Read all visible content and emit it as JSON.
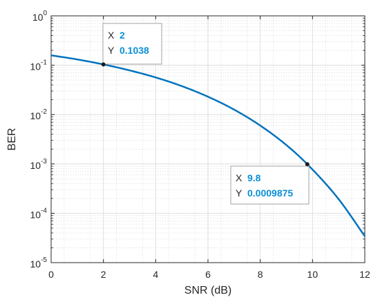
{
  "chart_data": {
    "type": "line",
    "title": "",
    "xlabel": "SNR (dB)",
    "ylabel": "BER",
    "xlim": [
      0,
      12
    ],
    "ylim": [
      1e-05,
      1
    ],
    "xscale": "linear",
    "yscale": "log",
    "grid": true,
    "minor_grid": true,
    "x_ticks": [
      0,
      2,
      4,
      6,
      8,
      10,
      12
    ],
    "x_tick_labels": [
      "0",
      "2",
      "4",
      "6",
      "8",
      "10",
      "12"
    ],
    "y_ticks": [
      1,
      0.1,
      0.01,
      0.001,
      0.0001,
      1e-05
    ],
    "y_tick_labels": [
      {
        "base": "10",
        "exp": "0"
      },
      {
        "base": "10",
        "exp": "-1"
      },
      {
        "base": "10",
        "exp": "-2"
      },
      {
        "base": "10",
        "exp": "-3"
      },
      {
        "base": "10",
        "exp": "-4"
      },
      {
        "base": "10",
        "exp": "-5"
      }
    ],
    "series": [
      {
        "color": "#0072bd",
        "x": [
          0,
          1,
          2,
          3,
          4,
          5,
          6,
          7,
          8,
          9,
          9.8,
          11,
          12
        ],
        "y": [
          0.1587,
          0.1309,
          0.1038,
          0.0786,
          0.0565,
          0.0377,
          0.023,
          0.0126,
          0.00599,
          0.00241,
          0.0009875,
          0.000193,
          3.43e-05
        ]
      }
    ],
    "datatips": [
      {
        "x": 2,
        "y": 0.1038,
        "x_label": "X",
        "y_label": "Y",
        "x_text": "2",
        "y_text": "0.1038"
      },
      {
        "x": 9.8,
        "y": 0.0009875,
        "x_label": "X",
        "y_label": "Y",
        "x_text": "9.8",
        "y_text": "0.0009875"
      }
    ],
    "colors": {
      "line": "#0072bd",
      "datatip_value": "#0a8fd6",
      "axis": "#262626",
      "grid": "#dedede"
    }
  }
}
